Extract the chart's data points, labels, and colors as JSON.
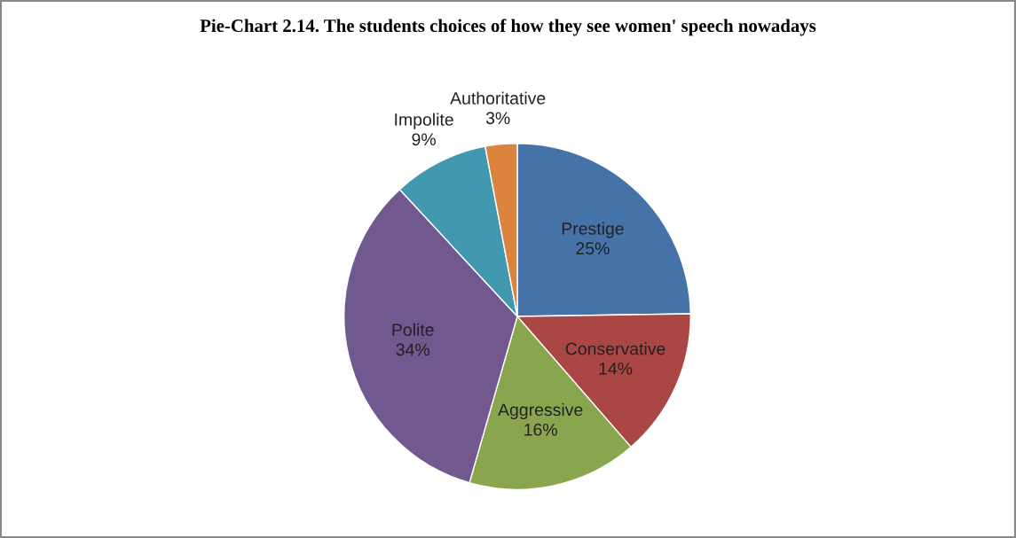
{
  "chart_data": {
    "type": "pie",
    "title": "Pie-Chart 2.14. The students choices of how they see women' speech nowadays",
    "categories": [
      "Prestige",
      "Conservative",
      "Aggressive",
      "Polite",
      "Impolite",
      "Authoritative"
    ],
    "values": [
      25,
      14,
      16,
      34,
      9,
      3
    ],
    "colors": [
      "#4572a7",
      "#aa4643",
      "#89a54e",
      "#71588f",
      "#4198af",
      "#db843d"
    ],
    "value_labels": [
      "25%",
      "14%",
      "16%",
      "34%",
      "9%",
      "3%"
    ]
  }
}
